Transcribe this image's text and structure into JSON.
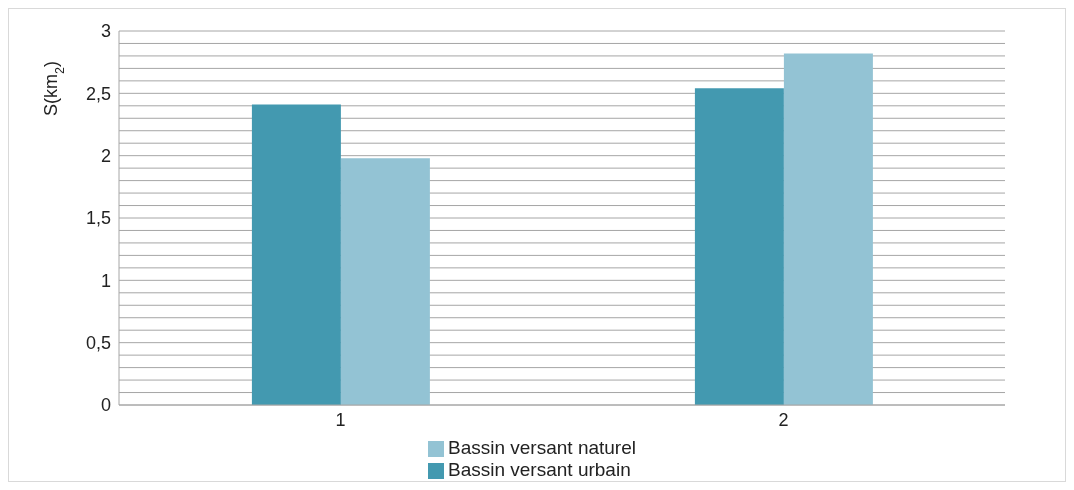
{
  "chart_data": {
    "type": "bar",
    "ylabel": "S(km$_{2}$)",
    "categories": [
      "1",
      "2"
    ],
    "series": [
      {
        "name": "Bassin versant urbain",
        "color": "#4399b0",
        "values": [
          2.41,
          2.54
        ]
      },
      {
        "name": "Bassin versant naturel",
        "color": "#93c3d4",
        "values": [
          1.98,
          2.82
        ]
      }
    ],
    "ylim": [
      0,
      3
    ],
    "yticks": [
      0,
      {
        "value": 0.1,
        "label": null
      },
      {
        "value": 0.2,
        "label": null
      },
      {
        "value": 0.3,
        "label": null
      },
      {
        "value": 0.4,
        "label": null
      },
      {
        "value": 0.5,
        "label": "0,5"
      },
      {
        "value": 0.6,
        "label": null
      },
      {
        "value": 0.7,
        "label": null
      },
      {
        "value": 0.8,
        "label": null
      },
      {
        "value": 0.9,
        "label": null
      },
      1,
      {
        "value": 1.1,
        "label": null
      },
      {
        "value": 1.2,
        "label": null
      },
      {
        "value": 1.3,
        "label": null
      },
      {
        "value": 1.4,
        "label": null
      },
      {
        "value": 1.5,
        "label": "1,5"
      },
      {
        "value": 1.6,
        "label": null
      },
      {
        "value": 1.7,
        "label": null
      },
      {
        "value": 1.8,
        "label": null
      },
      {
        "value": 1.9,
        "label": null
      },
      2,
      {
        "value": 2.1,
        "label": null
      },
      {
        "value": 2.2,
        "label": null
      },
      {
        "value": 2.3,
        "label": null
      },
      {
        "value": 2.4,
        "label": null
      },
      {
        "value": 2.5,
        "label": "2,5"
      },
      {
        "value": 2.6,
        "label": null
      },
      {
        "value": 2.7,
        "label": null
      },
      {
        "value": 2.8,
        "label": null
      },
      {
        "value": 2.9,
        "label": null
      },
      3
    ],
    "grid": "y",
    "legend": "bottom"
  }
}
